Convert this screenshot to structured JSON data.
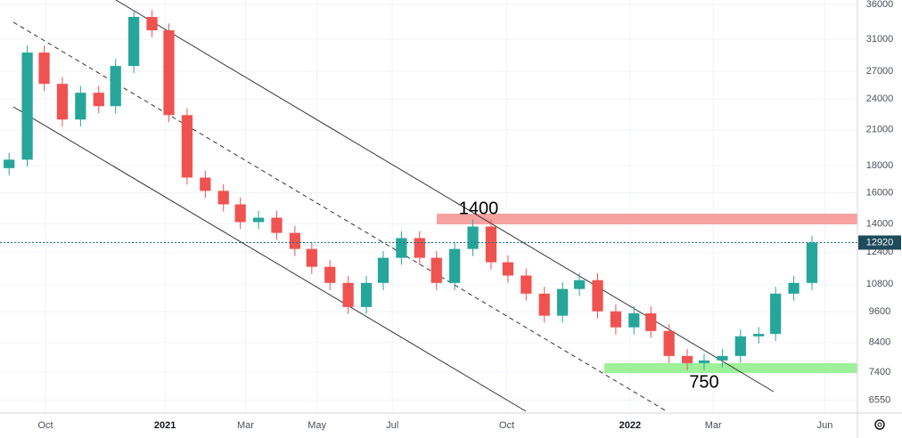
{
  "chart_data": {
    "type": "candlestick",
    "log_scale": true,
    "grid": true,
    "up_color": "#26a69a",
    "down_color": "#ef5350",
    "x": [
      -28,
      -14,
      -1,
      13,
      27,
      41,
      54,
      68,
      82,
      95,
      109,
      123,
      137,
      150,
      164,
      178,
      192,
      205,
      219,
      233,
      247,
      260,
      274,
      288,
      301,
      315,
      329,
      343,
      356,
      370,
      384,
      398,
      411,
      425,
      439,
      453,
      466,
      480,
      494,
      507,
      521,
      535,
      549,
      562,
      576,
      590
    ],
    "open": [
      17800,
      18460,
      29270,
      25580,
      21940,
      24620,
      23240,
      27630,
      34120,
      32210,
      22360,
      17090,
      16140,
      15230,
      14110,
      14380,
      13470,
      12570,
      11640,
      10860,
      9790,
      10860,
      12100,
      13170,
      12100,
      10860,
      12570,
      13840,
      11870,
      11210,
      10370,
      9430,
      10580,
      10990,
      9610,
      8970,
      9530,
      8830,
      7930,
      7690,
      7780,
      7930,
      8630,
      8720,
      10370,
      10860
    ],
    "high": [
      19010,
      30150,
      30150,
      26350,
      25360,
      25360,
      28460,
      35140,
      35140,
      33180,
      23030,
      17600,
      16620,
      15690,
      14810,
      14810,
      13870,
      12950,
      11990,
      11190,
      11190,
      12460,
      13570,
      13570,
      12460,
      12950,
      14260,
      14260,
      12230,
      11550,
      10680,
      10900,
      11320,
      11320,
      9900,
      9820,
      9820,
      9090,
      8170,
      8010,
      8170,
      8890,
      8980,
      10680,
      11190,
      13310
    ],
    "low": [
      17270,
      17910,
      24810,
      21280,
      21280,
      22540,
      22540,
      26800,
      31240,
      21690,
      16580,
      15660,
      14770,
      13690,
      13690,
      13070,
      12190,
      11290,
      10530,
      9500,
      9500,
      10530,
      11740,
      11740,
      10530,
      10530,
      12190,
      11510,
      10870,
      10060,
      9150,
      9150,
      10260,
      9320,
      8700,
      8700,
      8570,
      7690,
      7460,
      7460,
      7550,
      7690,
      8370,
      8460,
      10060,
      10530
    ],
    "close": [
      18460,
      29270,
      25580,
      21940,
      24620,
      23240,
      27630,
      34120,
      32210,
      22360,
      17090,
      16140,
      15230,
      14110,
      14380,
      13470,
      12570,
      11640,
      10860,
      9790,
      10860,
      12100,
      13170,
      12100,
      10860,
      12570,
      13840,
      11870,
      11210,
      10370,
      9430,
      10580,
      10990,
      9610,
      8970,
      9530,
      8830,
      7930,
      7690,
      7780,
      7930,
      8630,
      8720,
      10370,
      10860,
      12920
    ],
    "xlim": [
      -35,
      625
    ],
    "xticks": [
      {
        "value": 0,
        "label": "Oct"
      },
      {
        "value": 92,
        "label": "2021"
      },
      {
        "value": 154,
        "label": "Mar"
      },
      {
        "value": 209,
        "label": "May"
      },
      {
        "value": 267,
        "label": "Jul"
      },
      {
        "value": 355,
        "label": "Oct"
      },
      {
        "value": 450,
        "label": "2022"
      },
      {
        "value": 514,
        "label": "Mar"
      },
      {
        "value": 600,
        "label": "Jun"
      }
    ],
    "ylim": [
      6250,
      36700
    ],
    "yticks": [
      6550,
      7400,
      8400,
      9600,
      10800,
      12400,
      14000,
      16000,
      18000,
      21000,
      24000,
      27000,
      31000,
      36000
    ],
    "last_price": 12920,
    "annotations": [
      "1400",
      "750"
    ]
  }
}
